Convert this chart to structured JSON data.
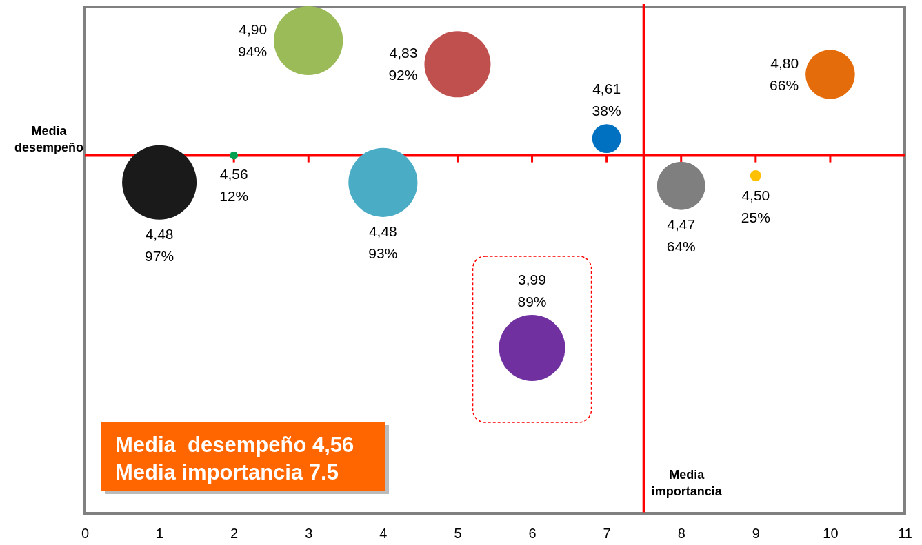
{
  "chart_data": {
    "type": "bubble",
    "x": [
      1,
      2,
      3,
      4,
      5,
      6,
      7,
      8,
      9,
      10
    ],
    "values": [
      4.48,
      4.56,
      4.9,
      4.48,
      4.83,
      3.99,
      4.61,
      4.47,
      4.5,
      4.8
    ],
    "sizes": [
      1,
      0.012,
      0.86,
      0.86,
      0.79,
      0.79,
      0.15,
      0.42,
      0.022,
      0.44
    ],
    "colors": [
      "#1a1a1a",
      "#00a050",
      "#9bbb59",
      "#4bacc6",
      "#c0504d",
      "#7030a0",
      "#0070c0",
      "#7f7f7f",
      "#ffc000",
      "#e46c0a"
    ],
    "value_labels": [
      "4,48\n97%",
      "4,56\n12%",
      "4,90\n94%",
      "4,48\n93%",
      "4,83\n92%",
      "3,99\n89%",
      "4,61\n38%",
      "4,47\n64%",
      "4,50\n25%",
      "4,80\n66%"
    ],
    "xlim": [
      0,
      11
    ],
    "xticks": [
      0,
      1,
      2,
      3,
      4,
      5,
      6,
      7,
      8,
      9,
      10,
      11
    ],
    "ylim": [
      3.5,
      5
    ],
    "tick_labels": "x",
    "ref_lines": [
      {
        "axis": "y",
        "value": 4.56,
        "label": "Media desempeño",
        "color": "#ff0000"
      },
      {
        "axis": "x",
        "value": 7.5,
        "label": "Media importancia",
        "color": "#ff0000"
      }
    ],
    "annotations": [
      "Media  desempeño 4,56",
      "Media importancia 7.5"
    ]
  }
}
